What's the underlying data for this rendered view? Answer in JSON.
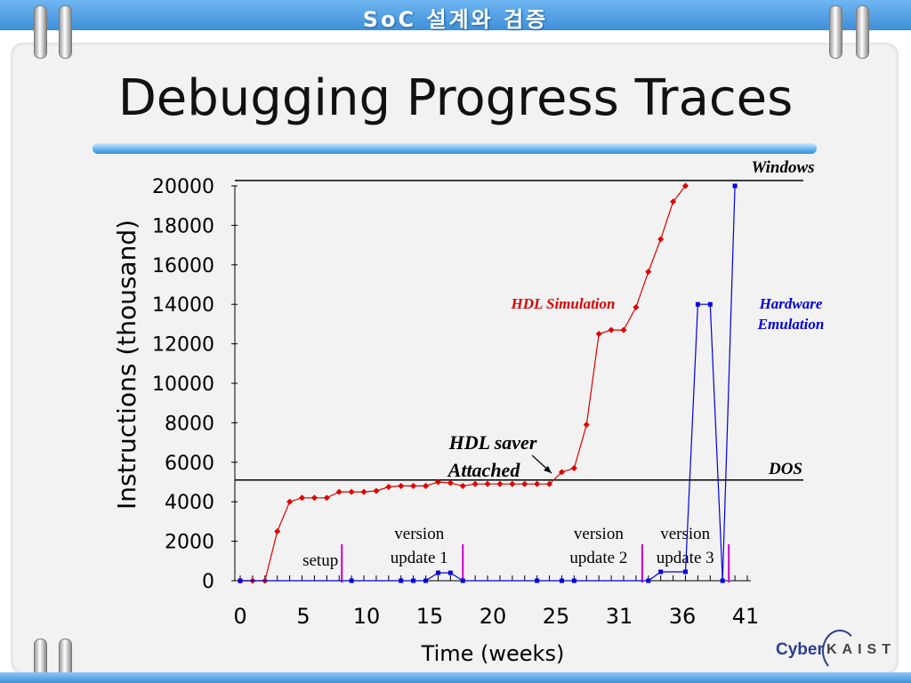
{
  "banner": {
    "title": "SoC 설계와 검증"
  },
  "slide": {
    "title": "Debugging Progress Traces"
  },
  "logo": {
    "cyber": "Cyber",
    "kaist": "KAIST"
  },
  "colors": {
    "hdl_series": "#dd0000",
    "hw_series": "#0000dd",
    "markers": "#cc00cc",
    "banner": "#4a9be0"
  },
  "chart_data": {
    "type": "line",
    "title": "",
    "xlabel": "Time (weeks)",
    "ylabel": "Instructions (thousand)",
    "xlim": [
      0,
      41
    ],
    "ylim": [
      0,
      20000
    ],
    "x_tick_labels": [
      "0",
      "5",
      "10",
      "15",
      "20",
      "25",
      "31",
      "36",
      "41"
    ],
    "y_tick_labels": [
      "0",
      "2000",
      "4000",
      "6000",
      "8000",
      "10000",
      "12000",
      "14000",
      "16000",
      "18000",
      "20000"
    ],
    "series": [
      {
        "name": "HDL Simulation",
        "color": "#dd0000",
        "points": [
          [
            0,
            0
          ],
          [
            1,
            0
          ],
          [
            2,
            0
          ],
          [
            3,
            2500
          ],
          [
            4,
            4000
          ],
          [
            5,
            4200
          ],
          [
            6,
            4200
          ],
          [
            7,
            4200
          ],
          [
            8,
            4500
          ],
          [
            9,
            4500
          ],
          [
            10,
            4500
          ],
          [
            11,
            4550
          ],
          [
            12,
            4750
          ],
          [
            13,
            4800
          ],
          [
            14,
            4800
          ],
          [
            15,
            4800
          ],
          [
            16,
            5000
          ],
          [
            17,
            4950
          ],
          [
            18,
            4800
          ],
          [
            19,
            4900
          ],
          [
            20,
            4900
          ],
          [
            21,
            4900
          ],
          [
            22,
            4900
          ],
          [
            23,
            4900
          ],
          [
            24,
            4900
          ],
          [
            25,
            4900
          ],
          [
            26,
            5500
          ],
          [
            27,
            5700
          ],
          [
            28,
            7900
          ],
          [
            29,
            12500
          ],
          [
            30,
            12700
          ],
          [
            31,
            12700
          ],
          [
            32,
            13850
          ],
          [
            33,
            15650
          ],
          [
            34,
            17300
          ],
          [
            35,
            19200
          ],
          [
            36,
            20000
          ]
        ]
      },
      {
        "name": "Hardware Emulation",
        "color": "#0000dd",
        "points": [
          [
            0,
            0
          ],
          [
            9,
            0
          ],
          [
            13,
            0
          ],
          [
            14,
            0
          ],
          [
            15,
            0
          ],
          [
            16,
            400
          ],
          [
            17,
            400
          ],
          [
            18,
            0
          ],
          [
            24,
            0
          ],
          [
            26,
            0
          ],
          [
            27,
            0
          ],
          [
            33,
            0
          ],
          [
            34,
            450
          ],
          [
            36,
            450
          ],
          [
            37,
            14000
          ],
          [
            38,
            14000
          ],
          [
            39,
            0
          ],
          [
            40,
            20000
          ]
        ]
      }
    ],
    "reference_lines": [
      {
        "label": "Windows",
        "y": 20000
      },
      {
        "label": "DOS",
        "y": 5100
      }
    ],
    "markers": [
      {
        "x": 8,
        "label": "setup"
      },
      {
        "x": 18,
        "label_line1": "version",
        "label_line2": "update 1"
      },
      {
        "x": 32,
        "label_line1": "version",
        "label_line2": "update 2"
      },
      {
        "x": 39,
        "label_line1": "version",
        "label_line2": "update 3"
      }
    ],
    "annotations": {
      "hdl_saver_line1": "HDL saver",
      "hdl_saver_line2": "Attached",
      "hdl_sim_label": "HDL Simulation",
      "hw_label_line1": "Hardware",
      "hw_label_line2": "Emulation"
    },
    "grid": false,
    "legend": "none"
  }
}
